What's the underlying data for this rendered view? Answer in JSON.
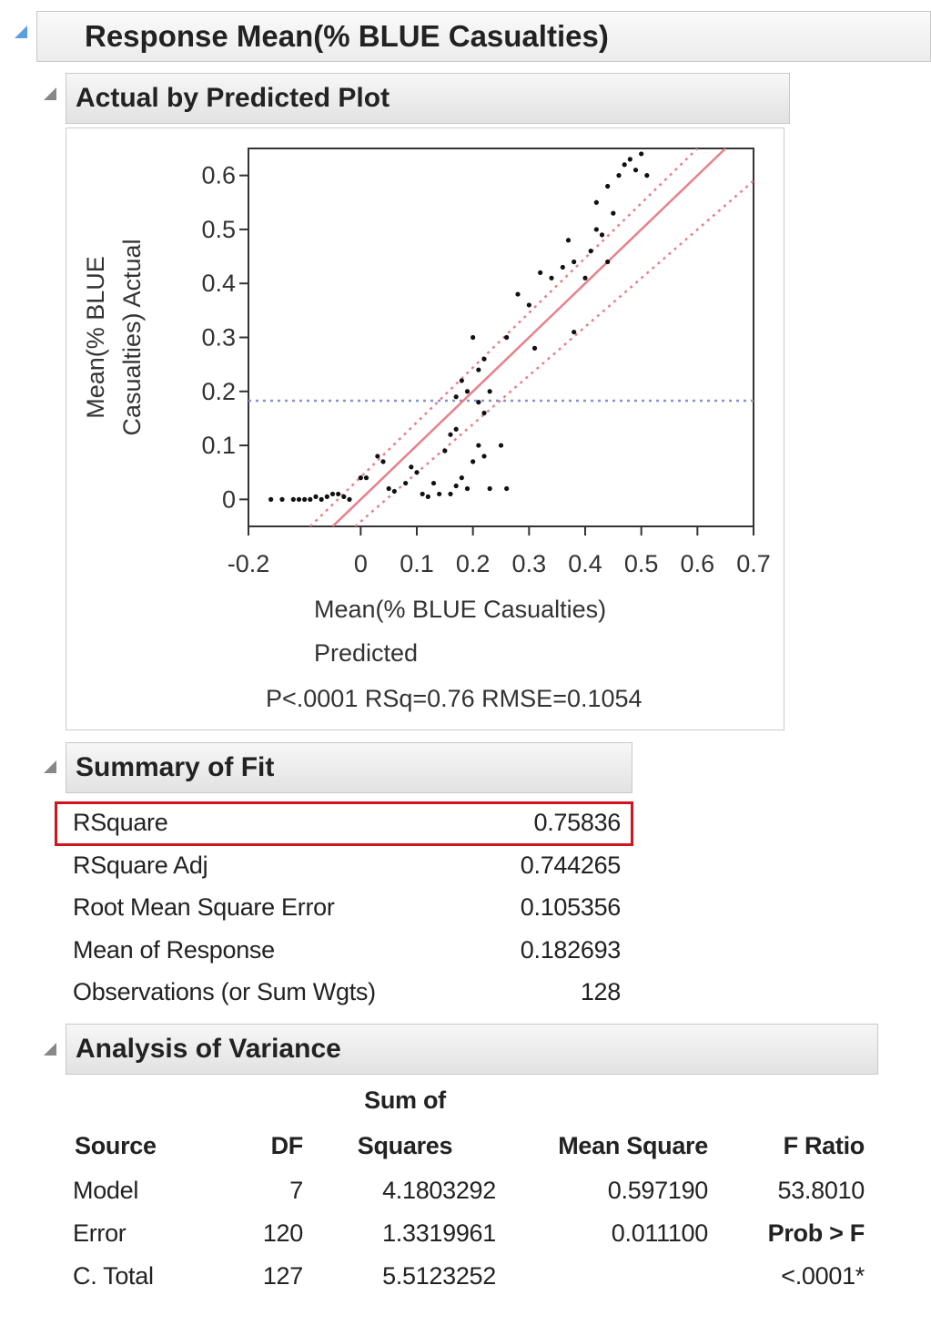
{
  "header": {
    "title": "Response Mean(% BLUE Casualties)"
  },
  "actual_by_predicted": {
    "title": "Actual by Predicted Plot",
    "chart_data": {
      "type": "scatter",
      "ylabel": [
        "Mean(% BLUE",
        "Casualties) Actual"
      ],
      "xlabel": [
        "Mean(% BLUE Casualties)",
        "Predicted"
      ],
      "annotation": "P<.0001 RSq=0.76 RMSE=0.1054",
      "xlim": [
        -0.2,
        0.7
      ],
      "ylim": [
        -0.05,
        0.65
      ],
      "xticks": [
        -0.2,
        0,
        0.1,
        0.2,
        0.3,
        0.4,
        0.5,
        0.6,
        0.7
      ],
      "yticks": [
        0,
        0.1,
        0.2,
        0.3,
        0.4,
        0.5,
        0.6
      ],
      "color": "#111111",
      "x": [
        -0.16,
        -0.14,
        -0.12,
        -0.11,
        -0.1,
        -0.09,
        -0.08,
        -0.07,
        -0.06,
        -0.05,
        -0.04,
        -0.03,
        -0.02,
        0,
        0.01,
        0.03,
        0.04,
        0.05,
        0.06,
        0.08,
        0.09,
        0.1,
        0.11,
        0.12,
        0.13,
        0.14,
        0.15,
        0.16,
        0.17,
        0.18,
        0.19,
        0.2,
        0.21,
        0.22,
        0.23,
        0.25,
        0.26,
        0.16,
        0.17,
        0.17,
        0.18,
        0.19,
        0.2,
        0.21,
        0.22,
        0.23,
        0.21,
        0.22,
        0.26,
        0.28,
        0.3,
        0.31,
        0.32,
        0.34,
        0.36,
        0.37,
        0.38,
        0.38,
        0.4,
        0.41,
        0.42,
        0.43,
        0.44,
        0.45,
        0.46,
        0.47,
        0.48,
        0.49,
        0.5,
        0.42,
        0.44,
        0.51
      ],
      "y": [
        0,
        0,
        0,
        0,
        0,
        0,
        0.005,
        0,
        0.005,
        0.01,
        0.01,
        0.005,
        0,
        0.04,
        0.04,
        0.08,
        0.07,
        0.02,
        0.015,
        0.03,
        0.06,
        0.05,
        0.01,
        0.005,
        0.03,
        0.01,
        0.09,
        0.01,
        0.025,
        0.04,
        0.02,
        0.07,
        0.1,
        0.08,
        0.02,
        0.1,
        0.02,
        0.12,
        0.13,
        0.19,
        0.22,
        0.2,
        0.3,
        0.24,
        0.26,
        0.2,
        0.18,
        0.16,
        0.3,
        0.38,
        0.36,
        0.28,
        0.42,
        0.41,
        0.43,
        0.48,
        0.31,
        0.44,
        0.41,
        0.46,
        0.5,
        0.49,
        0.44,
        0.53,
        0.6,
        0.62,
        0.63,
        0.61,
        0.64,
        0.55,
        0.58,
        0.6
      ],
      "lines": [
        {
          "color": "#e8808a",
          "dash": false,
          "x": [
            -0.05,
            0.65
          ],
          "y": [
            -0.05,
            0.65
          ]
        },
        {
          "color": "#e8808a",
          "dash": true,
          "x": [
            -0.09,
            0.6
          ],
          "y": [
            -0.05,
            0.65
          ]
        },
        {
          "color": "#e8808a",
          "dash": true,
          "x": [
            -0.01,
            0.7
          ],
          "y": [
            -0.05,
            0.59
          ]
        }
      ],
      "mean_line_color": "#8890d8"
    }
  },
  "summary_of_fit": {
    "title": "Summary of Fit",
    "highlight_color": "#d0141c",
    "rows": [
      {
        "label": "RSquare",
        "value": 0.75836
      },
      {
        "label": "RSquare Adj",
        "value": 0.744265
      },
      {
        "label": "Root Mean Square Error",
        "value": 0.105356
      },
      {
        "label": "Mean of Response",
        "value": 0.182693
      },
      {
        "label": "Observations (or Sum Wgts)",
        "value": 128
      }
    ]
  },
  "analysis_of_variance": {
    "title": "Analysis of Variance",
    "columns": [
      "Source",
      "DF",
      [
        "Sum of",
        "Squares"
      ],
      "Mean Square",
      "F Ratio"
    ],
    "rows": [
      {
        "source": "Model",
        "df": 7,
        "ss": 4.1803292,
        "ms": "0.597190",
        "f": "53.8010"
      },
      {
        "source": "Error",
        "df": 120,
        "ss": 1.3319961,
        "ms": "0.011100",
        "f": "Prob > F"
      },
      {
        "source": "C. Total",
        "df": 127,
        "ss": 5.5123252,
        "f": "<.0001*"
      }
    ]
  }
}
